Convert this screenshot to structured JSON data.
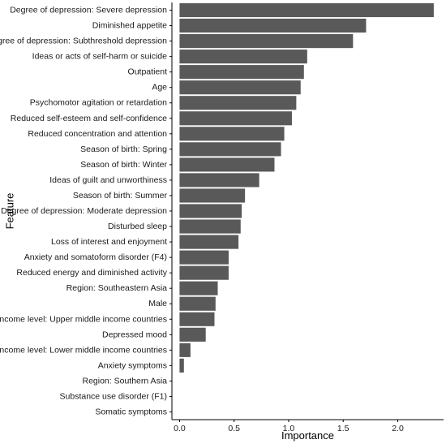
{
  "chart_data": {
    "type": "bar",
    "orientation": "horizontal",
    "categories": [
      "Degree of depression: Severe depression",
      "Diminished appetite",
      "Degree of depression: Subthreshold depression",
      "Ideas or acts of self-harm or suicide",
      "Outpatient",
      "Age",
      "Psychomotor agitation or retardation",
      "Reduced self-esteem and self-confidence",
      "Reduced concentration and attention",
      "Season of birth: Spring",
      "Season of birth: Winter",
      "Ideas of guilt and unworthiness",
      "Season of birth: Summer",
      "Degree of depression: Moderate depression",
      "Disturbed sleep",
      "Loss of interest and enjoyment",
      "Anxiety and somatoform disorder (F4)",
      "Reduced energy and diminished activity",
      "Region: Southeastern Asia",
      "Male",
      "Income level: Upper middle income countries",
      "Depressed mood",
      "Income level: Lower middle income countries",
      "Anxiety symptoms",
      "Region: Southern Asia",
      "Substance use disorder (F1)",
      "Somatic symptoms"
    ],
    "values": [
      2.33,
      1.71,
      1.59,
      1.17,
      1.14,
      1.11,
      1.07,
      1.03,
      0.96,
      0.93,
      0.87,
      0.73,
      0.6,
      0.57,
      0.56,
      0.54,
      0.45,
      0.45,
      0.35,
      0.33,
      0.32,
      0.24,
      0.1,
      0.04,
      0.0,
      0.0,
      0.0
    ],
    "xlabel": "Importance",
    "ylabel": "Feature",
    "xlim": [
      -0.07,
      2.42
    ],
    "xticks": [
      0.0,
      0.5,
      1.0,
      1.5,
      2.0
    ],
    "xtick_labels": [
      "0.0",
      "0.5",
      "1.0",
      "1.5",
      "2.0"
    ],
    "grid": false,
    "bar_color": "#595959"
  }
}
